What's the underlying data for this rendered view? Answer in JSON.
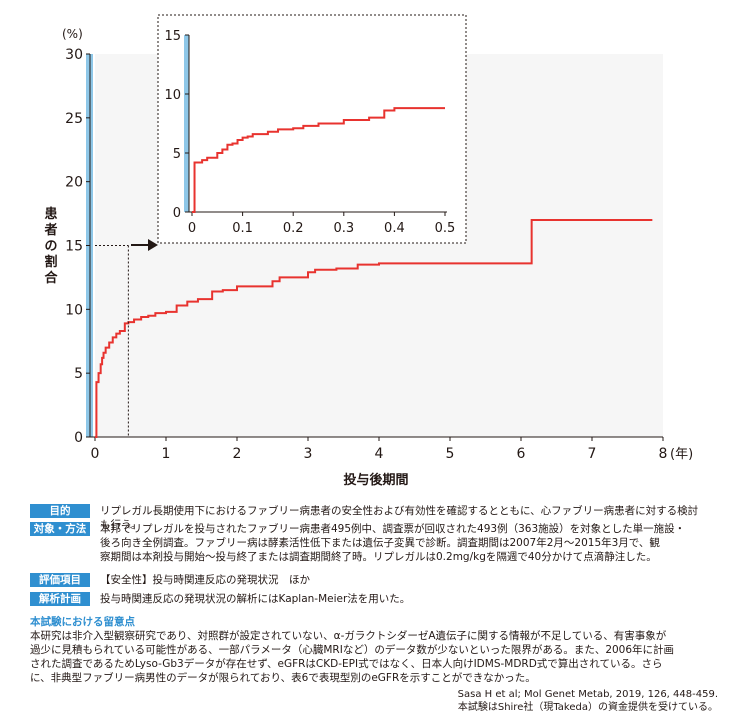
{
  "colors": {
    "curve": "#e8332f",
    "plot_bg": "#f6f6f6",
    "axis_bar": "#8ec7e8",
    "tag_bg": "#2f8fd0",
    "text": "#231815"
  },
  "chart_data": [
    {
      "type": "line",
      "ylabel": "患者の割合",
      "yunit": "(%)",
      "xlabel": "投与後期間",
      "xunit": "(年)",
      "xlim": [
        0,
        8
      ],
      "ylim": [
        0,
        30
      ],
      "xticks": [
        "0",
        "1",
        "2",
        "3",
        "4",
        "5",
        "6",
        "7",
        "8"
      ],
      "yticks": [
        "0",
        "5",
        "10",
        "15",
        "20",
        "25",
        "30"
      ],
      "grid": false,
      "step": true,
      "series": [
        {
          "x": [
            0,
            0.02,
            0.05,
            0.08,
            0.1,
            0.12,
            0.15,
            0.2,
            0.25,
            0.3,
            0.35,
            0.42,
            0.47,
            0.55,
            0.65,
            0.75,
            0.85,
            1.0,
            1.15,
            1.3,
            1.45,
            1.65,
            1.8,
            2.0,
            2.2,
            2.5,
            2.6,
            3.0,
            3.1,
            3.4,
            3.7,
            4.0,
            4.4,
            4.9,
            5.3,
            6.1,
            6.15,
            7.85
          ],
          "y": [
            0,
            4.3,
            5.0,
            5.7,
            6.2,
            6.6,
            7.0,
            7.4,
            7.8,
            8.1,
            8.3,
            8.9,
            9.0,
            9.2,
            9.4,
            9.5,
            9.7,
            9.8,
            10.3,
            10.6,
            10.8,
            11.4,
            11.5,
            11.8,
            11.8,
            12.2,
            12.5,
            12.9,
            13.1,
            13.2,
            13.5,
            13.6,
            13.6,
            13.6,
            13.6,
            13.6,
            17.0,
            17.0
          ]
        }
      ]
    },
    {
      "type": "line",
      "xlim": [
        0,
        0.5
      ],
      "ylim": [
        0,
        15
      ],
      "xticks": [
        "0",
        "0.1",
        "0.2",
        "0.3",
        "0.4",
        "0.5"
      ],
      "yticks": [
        "0",
        "5",
        "10",
        "15"
      ],
      "grid": false,
      "step": true,
      "series": [
        {
          "x": [
            0,
            0.005,
            0.02,
            0.03,
            0.05,
            0.06,
            0.07,
            0.08,
            0.09,
            0.1,
            0.11,
            0.12,
            0.13,
            0.15,
            0.17,
            0.2,
            0.22,
            0.25,
            0.28,
            0.3,
            0.33,
            0.35,
            0.37,
            0.38,
            0.4,
            0.5
          ],
          "y": [
            0,
            4.2,
            4.4,
            4.6,
            5.0,
            5.3,
            5.7,
            5.8,
            6.1,
            6.3,
            6.4,
            6.6,
            6.6,
            6.8,
            7.0,
            7.1,
            7.3,
            7.5,
            7.5,
            7.8,
            7.8,
            8.0,
            8.0,
            8.6,
            8.8,
            8.8
          ]
        }
      ]
    }
  ],
  "info": {
    "rows": [
      {
        "tag": "目的",
        "text": "リプレガル長期使用下におけるファブリー病患者の安全性および有効性を確認するとともに、心ファブリー病患者に対する検討も行う。"
      },
      {
        "tag": "対象・方法",
        "text": "本邦でリプレガルを投与されたファブリー病患者495例中、調査票が回収された493例（363施設）を対象とした単一施設・\n後ろ向き全例調査。ファブリー病は酵素活性低下または遺伝子変異で診断。調査期間は2007年2月〜2015年3月で、観\n察期間は本剤投与開始〜投与終了または調査期間終了時。リプレガルは0.2mg/kgを隔週で40分かけて点滴静注した。"
      },
      {
        "tag": "評価項目",
        "text": "【安全性】投与時関連反応の発現状況　ほか"
      },
      {
        "tag": "解析計画",
        "text": "投与時関連反応の発現状況の解析にはKaplan-Meier法を用いた。"
      }
    ],
    "notes_title": "本試験における留意点",
    "notes_text": "本研究は非介入型観察研究であり、対照群が設定されていない、α-ガラクトシダーゼA遺伝子に関する情報が不足している、有害事象が\n過少に見積もられている可能性がある、一部パラメータ（心臓MRIなど）のデータ数が少ないといった限界がある。また、2006年に計画\nされた調査であるためLyso-Gb3データが存在せず、eGFRはCKD-EPI式ではなく、日本人向けIDMS-MDRD式で算出されている。さら\nに、非典型ファブリー病男性のデータが限られており、表6で表現型別のeGFRを示すことができなかった。",
    "source_line1": "Sasa H et al; Mol Genet Metab, 2019, 126, 448-459.",
    "source_line2": "本試験はShire社（現Takeda）の資金提供を受けている。"
  }
}
